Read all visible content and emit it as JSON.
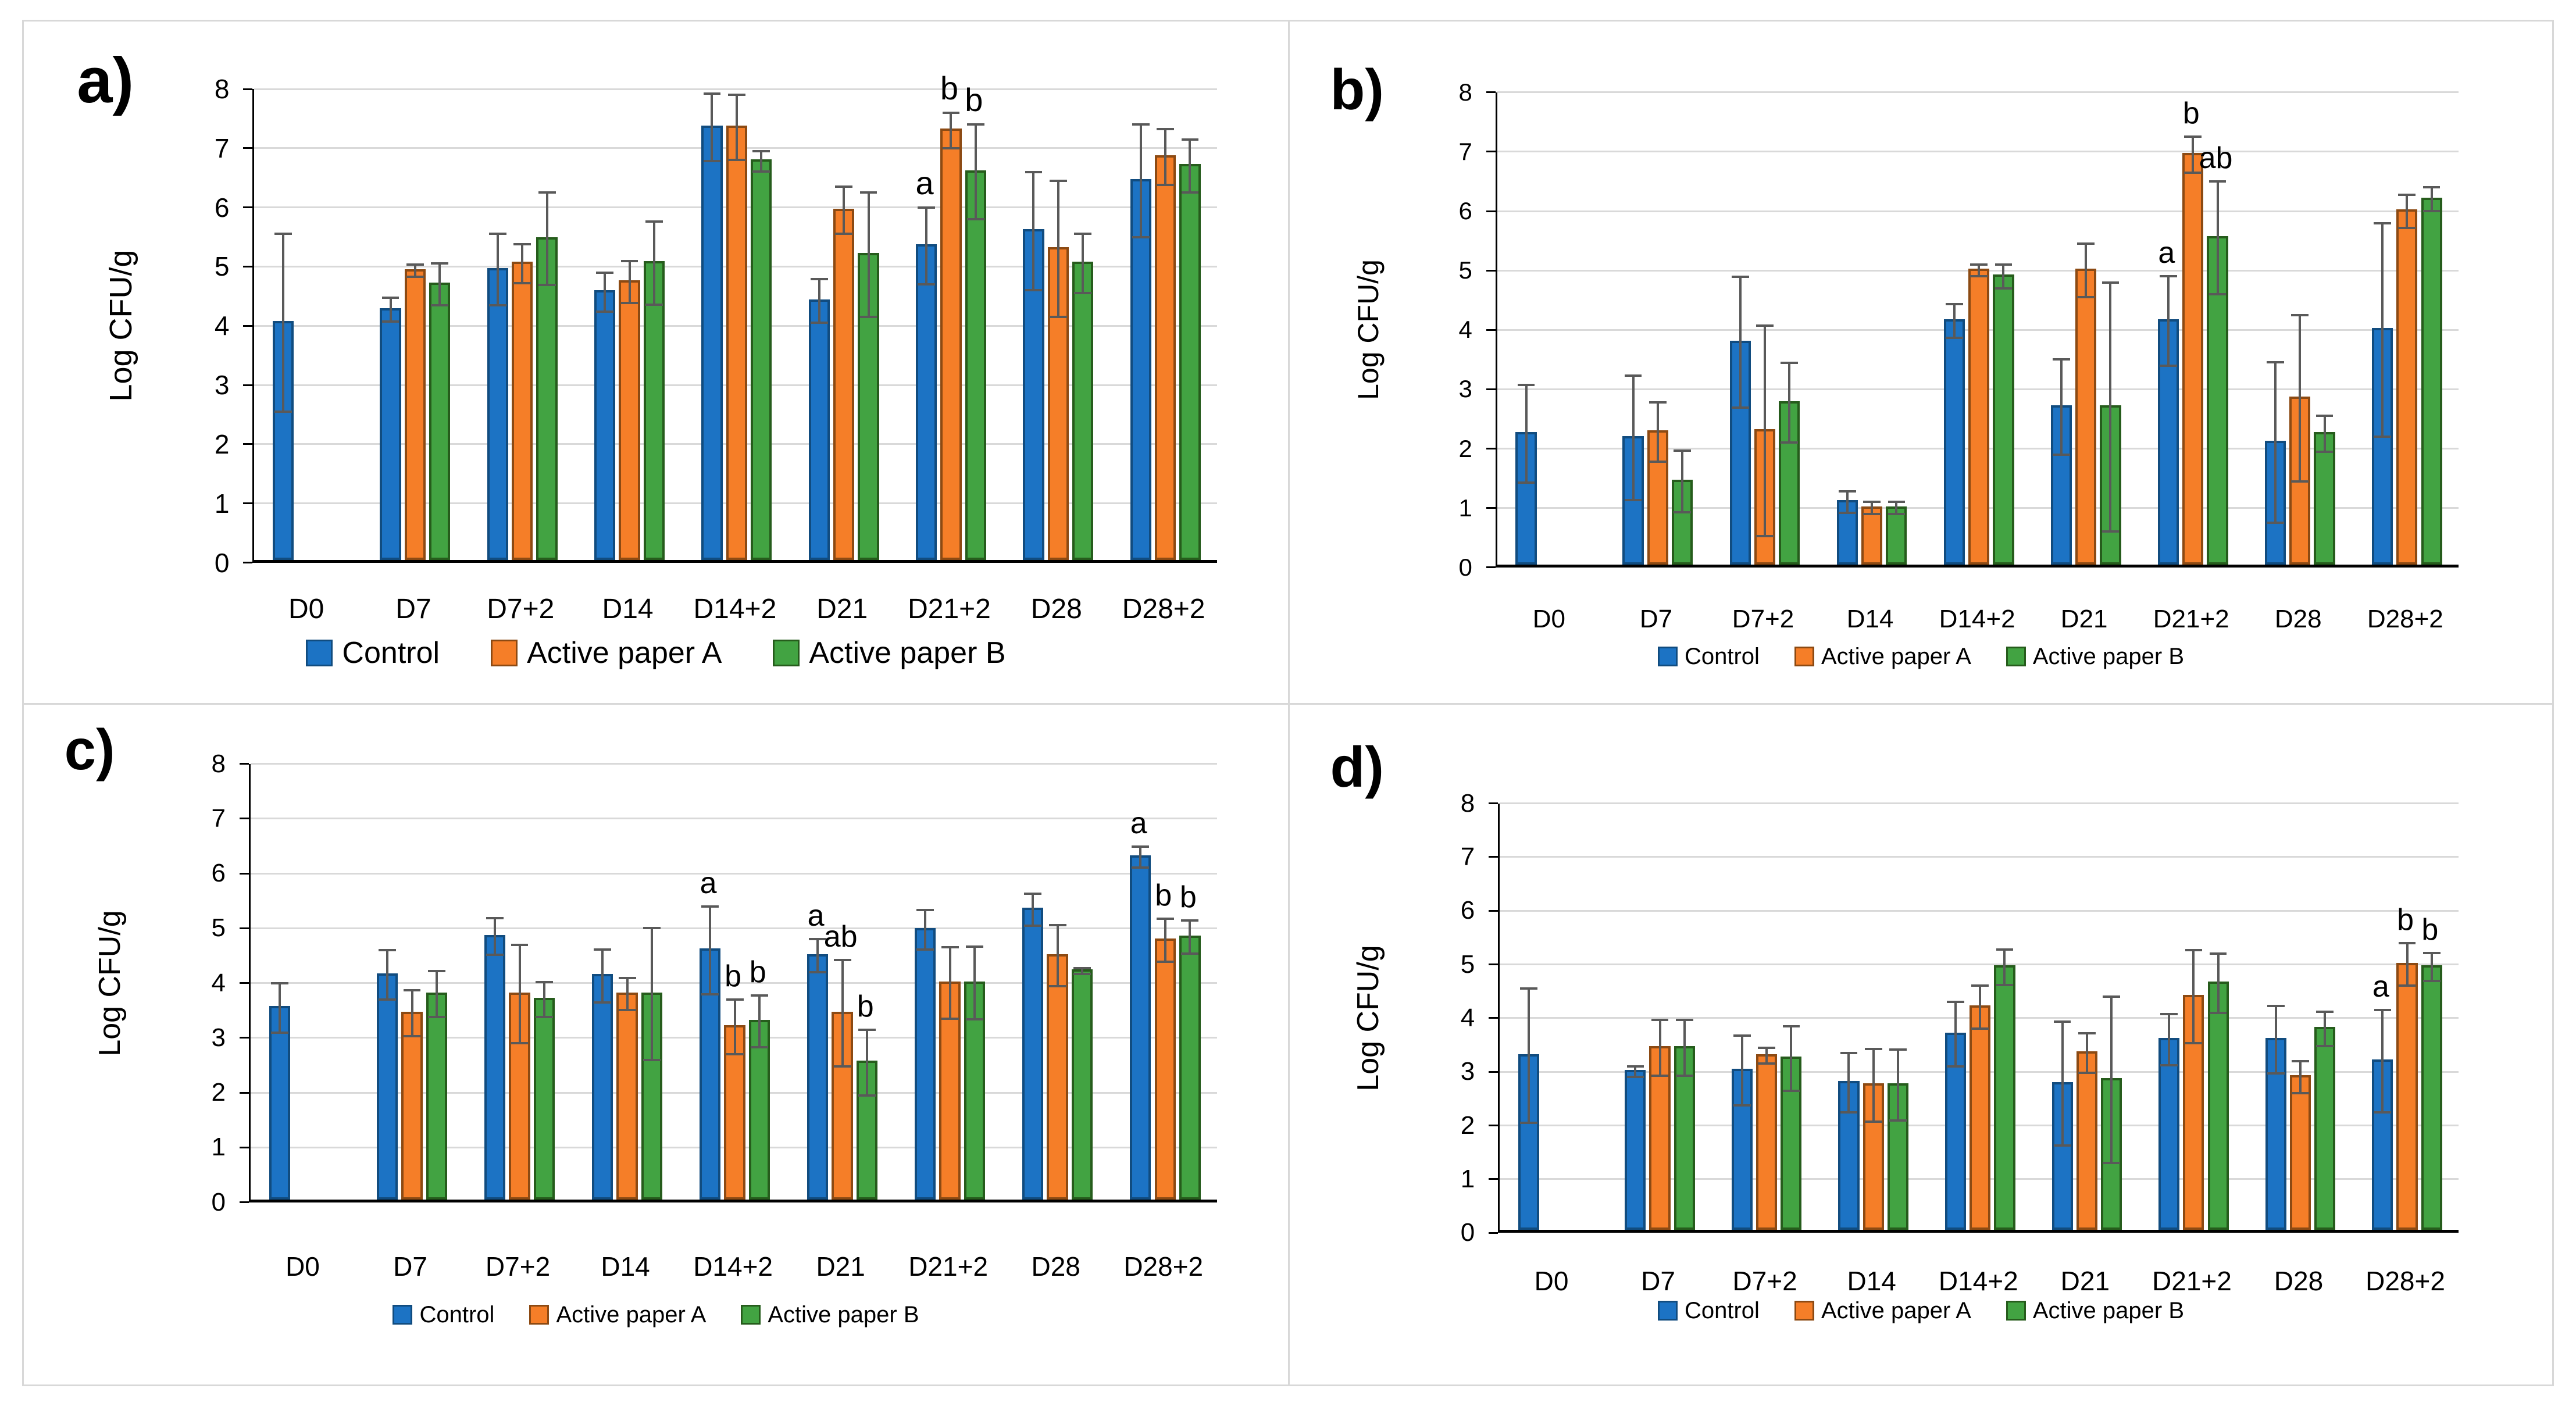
{
  "figure": {
    "background": "#ffffff",
    "panel_border_color": "#d8d8d8",
    "gridline_color": "#d9d9d9",
    "axis_color": "#000000",
    "error_bar_color": "#595959"
  },
  "chart_data": [
    {
      "id": "a",
      "panel_label": "a)",
      "type": "bar",
      "title": "",
      "xlabel": "",
      "ylabel": "Log CFU/g",
      "ylim": [
        0,
        8
      ],
      "yticks": [
        0,
        1,
        2,
        3,
        4,
        5,
        6,
        7,
        8
      ],
      "grid": true,
      "legend_position": "bottom",
      "categories": [
        "D0",
        "D7",
        "D7+2",
        "D14",
        "D14+2",
        "D21",
        "D21+2",
        "D28",
        "D28+2"
      ],
      "series": [
        {
          "name": "Control",
          "color": "#1c73c4",
          "border_color": "#114c7f",
          "values": [
            4.05,
            4.27,
            4.95,
            4.57,
            7.35,
            4.42,
            5.35,
            5.6,
            6.45
          ],
          "errors": [
            1.5,
            0.2,
            0.6,
            0.33,
            0.57,
            0.37,
            0.65,
            1.0,
            0.95
          ]
        },
        {
          "name": "Active paper A",
          "color": "#f57e28",
          "border_color": "#8c4a13",
          "values": [
            null,
            4.93,
            5.05,
            4.74,
            7.35,
            5.95,
            7.3,
            5.3,
            6.85
          ],
          "errors": [
            0,
            0.1,
            0.33,
            0.35,
            0.55,
            0.4,
            0.3,
            1.15,
            0.47
          ]
        },
        {
          "name": "Active paper B",
          "color": "#42a342",
          "border_color": "#265c1c",
          "values": [
            null,
            4.7,
            5.47,
            5.06,
            6.78,
            5.2,
            6.6,
            5.05,
            6.7
          ],
          "errors": [
            0,
            0.35,
            0.78,
            0.7,
            0.17,
            1.05,
            0.8,
            0.5,
            0.45
          ]
        }
      ],
      "annotations": [
        {
          "category": "D21+2",
          "series_index": 0,
          "text": "a"
        },
        {
          "category": "D21+2",
          "series_index": 1,
          "text": "b"
        },
        {
          "category": "D21+2",
          "series_index": 2,
          "text": "b"
        }
      ]
    },
    {
      "id": "b",
      "panel_label": "b)",
      "type": "bar",
      "title": "",
      "xlabel": "",
      "ylabel": "Log CFU/g",
      "ylim": [
        0,
        8
      ],
      "yticks": [
        0,
        1,
        2,
        3,
        4,
        5,
        6,
        7,
        8
      ],
      "grid": true,
      "legend_position": "bottom",
      "categories": [
        "D0",
        "D7",
        "D7+2",
        "D14",
        "D14+2",
        "D21",
        "D21+2",
        "D28",
        "D28+2"
      ],
      "series": [
        {
          "name": "Control",
          "color": "#1c73c4",
          "border_color": "#114c7f",
          "values": [
            2.25,
            2.18,
            3.79,
            1.1,
            4.15,
            2.7,
            4.15,
            2.1,
            4.0
          ],
          "errors": [
            0.82,
            1.05,
            1.1,
            0.18,
            0.28,
            0.8,
            0.75,
            1.35,
            1.8
          ]
        },
        {
          "name": "Active paper A",
          "color": "#f57e28",
          "border_color": "#8c4a13",
          "values": [
            null,
            2.28,
            2.3,
            1.0,
            5.0,
            5.0,
            6.95,
            2.85,
            6.0
          ],
          "errors": [
            0,
            0.5,
            1.77,
            0.1,
            0.1,
            0.45,
            0.3,
            1.4,
            0.28
          ]
        },
        {
          "name": "Active paper B",
          "color": "#42a342",
          "border_color": "#265c1c",
          "values": [
            null,
            1.45,
            2.77,
            1.0,
            4.9,
            2.7,
            5.55,
            2.25,
            6.2
          ],
          "errors": [
            0,
            0.52,
            0.67,
            0.1,
            0.2,
            2.1,
            0.95,
            0.3,
            0.2
          ]
        }
      ],
      "annotations": [
        {
          "category": "D21+2",
          "series_index": 0,
          "text": "a"
        },
        {
          "category": "D21+2",
          "series_index": 1,
          "text": "b"
        },
        {
          "category": "D21+2",
          "series_index": 2,
          "text": "ab"
        }
      ]
    },
    {
      "id": "c",
      "panel_label": "c)",
      "type": "bar",
      "title": "",
      "xlabel": "",
      "ylabel": "Log CFU/g",
      "ylim": [
        0,
        8
      ],
      "yticks": [
        0,
        1,
        2,
        3,
        4,
        5,
        6,
        7,
        8
      ],
      "grid": true,
      "legend_position": "bottom",
      "categories": [
        "D0",
        "D7",
        "D7+2",
        "D14",
        "D14+2",
        "D21",
        "D21+2",
        "D28",
        "D28+2"
      ],
      "series": [
        {
          "name": "Control",
          "color": "#1c73c4",
          "border_color": "#114c7f",
          "values": [
            3.55,
            4.15,
            4.85,
            4.13,
            4.6,
            4.5,
            4.97,
            5.34,
            6.3
          ],
          "errors": [
            0.45,
            0.45,
            0.33,
            0.48,
            0.8,
            0.3,
            0.36,
            0.29,
            0.19
          ]
        },
        {
          "name": "Active paper A",
          "color": "#f57e28",
          "border_color": "#8c4a13",
          "values": [
            null,
            3.45,
            3.8,
            3.8,
            3.2,
            3.45,
            4.0,
            4.5,
            4.78
          ],
          "errors": [
            0,
            0.42,
            0.9,
            0.29,
            0.5,
            0.97,
            0.65,
            0.56,
            0.39
          ]
        },
        {
          "name": "Active paper B",
          "color": "#42a342",
          "border_color": "#265c1c",
          "values": [
            null,
            3.8,
            3.7,
            3.8,
            3.3,
            2.55,
            4.0,
            4.22,
            4.84
          ],
          "errors": [
            0,
            0.42,
            0.32,
            1.2,
            0.47,
            0.6,
            0.66,
            0.05,
            0.3
          ]
        }
      ],
      "annotations": [
        {
          "category": "D14+2",
          "series_index": 0,
          "text": "a"
        },
        {
          "category": "D14+2",
          "series_index": 1,
          "text": "b"
        },
        {
          "category": "D14+2",
          "series_index": 2,
          "text": "b"
        },
        {
          "category": "D21",
          "series_index": 0,
          "text": "a"
        },
        {
          "category": "D21",
          "series_index": 1,
          "text": "ab"
        },
        {
          "category": "D21",
          "series_index": 2,
          "text": "b"
        },
        {
          "category": "D28+2",
          "series_index": 0,
          "text": "a"
        },
        {
          "category": "D28+2",
          "series_index": 1,
          "text": "b"
        },
        {
          "category": "D28+2",
          "series_index": 2,
          "text": "b"
        }
      ]
    },
    {
      "id": "d",
      "panel_label": "d)",
      "type": "bar",
      "title": "",
      "xlabel": "",
      "ylabel": "Log CFU/g",
      "ylim": [
        0,
        8
      ],
      "yticks": [
        0,
        1,
        2,
        3,
        4,
        5,
        6,
        7,
        8
      ],
      "grid": true,
      "legend_position": "bottom",
      "categories": [
        "D0",
        "D7",
        "D7+2",
        "D14",
        "D14+2",
        "D21",
        "D21+2",
        "D28",
        "D28+2"
      ],
      "series": [
        {
          "name": "Control",
          "color": "#1c73c4",
          "border_color": "#114c7f",
          "values": [
            3.3,
            3.0,
            3.02,
            2.8,
            3.7,
            2.78,
            3.6,
            3.6,
            3.2
          ],
          "errors": [
            1.25,
            0.1,
            0.65,
            0.55,
            0.6,
            1.15,
            0.48,
            0.63,
            0.95
          ]
        },
        {
          "name": "Active paper A",
          "color": "#f57e28",
          "border_color": "#8c4a13",
          "values": [
            null,
            3.45,
            3.3,
            2.75,
            4.2,
            3.35,
            4.4,
            2.9,
            5.0
          ],
          "errors": [
            0,
            0.52,
            0.15,
            0.68,
            0.4,
            0.37,
            0.87,
            0.3,
            0.4
          ]
        },
        {
          "name": "Active paper B",
          "color": "#42a342",
          "border_color": "#265c1c",
          "values": [
            null,
            3.45,
            3.25,
            2.75,
            4.95,
            2.85,
            4.65,
            3.8,
            4.95
          ],
          "errors": [
            0,
            0.52,
            0.6,
            0.66,
            0.33,
            1.55,
            0.55,
            0.32,
            0.26
          ]
        }
      ],
      "annotations": [
        {
          "category": "D28+2",
          "series_index": 0,
          "text": "a"
        },
        {
          "category": "D28+2",
          "series_index": 1,
          "text": "b"
        },
        {
          "category": "D28+2",
          "series_index": 2,
          "text": "b"
        }
      ]
    }
  ]
}
